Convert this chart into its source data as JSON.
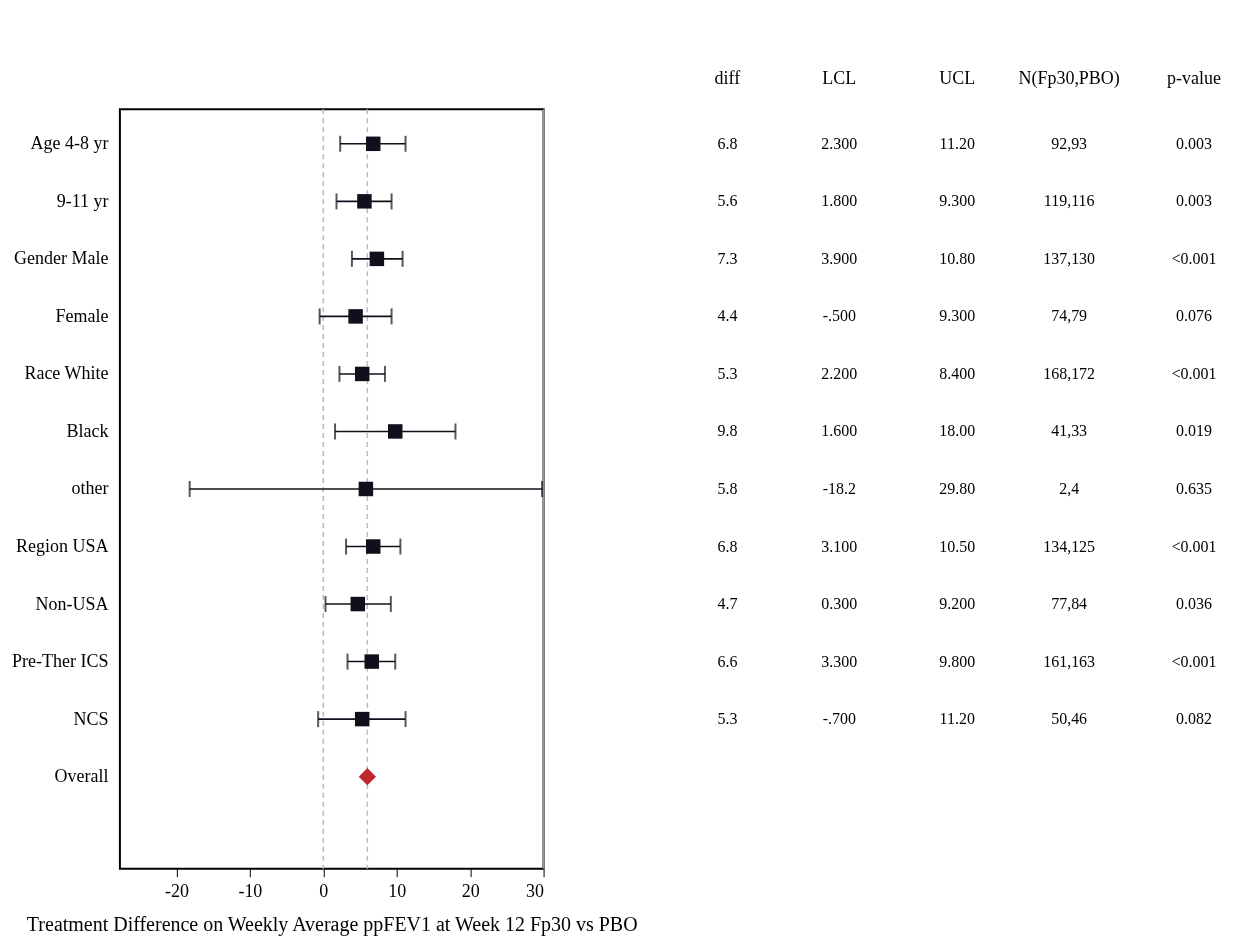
{
  "chart_data": {
    "type": "scatter",
    "orientation": "horizontal",
    "xlabel": "Treatment Difference on Weekly Average ppFEV1 at Week 12 Fp30 vs PBO",
    "categories": [
      "Age 4-8 yr",
      "9-11 yr",
      "Gender Male",
      "Female",
      "Race White",
      "Black",
      "other",
      "Region USA",
      "Non-USA",
      "Pre-Ther ICS",
      "NCS",
      "Overall",
      null
    ],
    "series": [
      {
        "type": "scatter",
        "marker": "square",
        "color": "#10101c",
        "values": [
          6.8,
          5.6,
          7.3,
          4.4,
          5.3,
          9.8,
          5.8,
          6.8,
          4.7,
          6.6,
          5.3,
          null,
          null
        ],
        "value_labels": [
          "6.8",
          "5.6",
          "7.3",
          "4.4",
          "5.3",
          "9.8",
          "5.8",
          "6.8",
          "4.7",
          "6.6",
          "5.3",
          null,
          null
        ],
        "errors": [
          [
            2.3,
            11.2
          ],
          [
            1.8,
            9.3
          ],
          [
            3.9,
            10.8
          ],
          [
            -0.5,
            9.3
          ],
          [
            2.2,
            8.4
          ],
          [
            1.6,
            18.0
          ],
          [
            -18.2,
            29.8
          ],
          [
            3.1,
            10.5
          ],
          [
            0.3,
            9.2
          ],
          [
            3.3,
            9.8
          ],
          [
            -0.7,
            11.2
          ],
          null,
          null
        ]
      },
      {
        "type": "scatter",
        "marker": "diamond",
        "color": "#c0282d",
        "values": [
          null,
          null,
          null,
          null,
          null,
          null,
          null,
          null,
          null,
          null,
          null,
          6.0,
          null
        ]
      }
    ],
    "xlim": [
      -27.7,
      30
    ],
    "xticks": [
      -20,
      -10,
      0,
      10,
      20,
      30
    ],
    "ref_lines": [
      {
        "axis": "x",
        "value": 0,
        "color": "#bbbbbb",
        "line_style": "dashed"
      },
      {
        "axis": "x",
        "value": 6.0,
        "color": "#bbbbbb",
        "line_style": "dashed"
      },
      {
        "axis": "x",
        "value": 30,
        "color": "#999999",
        "line_style": "solid"
      }
    ],
    "grid": false,
    "annotations": [
      "diff",
      "LCL",
      "UCL",
      "N(Fp30,PBO)",
      "p-value",
      "2.300",
      "11.20",
      "92,93",
      "0.003",
      "1.800",
      "9.300",
      "119,116",
      "0.003",
      "3.900",
      "10.80",
      "137,130",
      "<0.001",
      "-.500",
      "9.300",
      "74,79",
      "0.076",
      "2.200",
      "8.400",
      "168,172",
      "<0.001",
      "1.600",
      "18.00",
      "41,33",
      "0.019",
      "-18.2",
      "29.80",
      "2,4",
      "0.635",
      "3.100",
      "10.50",
      "134,125",
      "<0.001",
      "0.300",
      "9.200",
      "77,84",
      "0.036",
      "3.300",
      "9.800",
      "161,163",
      "<0.001",
      "-.700",
      "11.20",
      "50,46",
      "0.082"
    ]
  }
}
